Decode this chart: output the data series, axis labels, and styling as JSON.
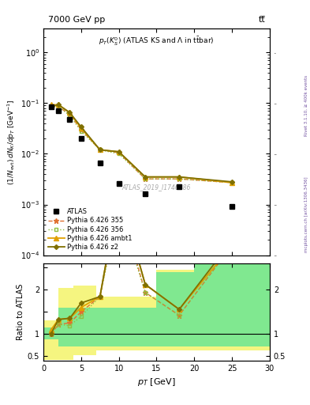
{
  "title_top": "7000 GeV pp",
  "title_right": "tt̅",
  "plot_title": "p_{T}(K^{0}_{S}) (ATLAS KS and \\Lambda in t\\bar{t}bar)",
  "watermark": "ATLAS_2019_I1746286",
  "right_label": "Rivet 3.1.10, ≥ 400k events",
  "right_label2": "mcplots.cern.ch [arXiv:1306.3436]",
  "ylabel_ratio": "Ratio to ATLAS",
  "xlabel": "p_{T} [GeV]",
  "xlim": [
    0,
    30
  ],
  "ylim_main": [
    0.0001,
    3.0
  ],
  "ylim_ratio": [
    0.4,
    2.6
  ],
  "atlas_x": [
    1.0,
    2.0,
    3.5,
    5.0,
    7.5,
    10.0,
    13.5,
    18.0,
    25.0
  ],
  "atlas_y": [
    0.085,
    0.07,
    0.048,
    0.02,
    0.0065,
    0.0026,
    0.00165,
    0.00225,
    0.0009
  ],
  "py355_x": [
    1.0,
    2.0,
    3.5,
    5.0,
    7.5,
    10.0,
    13.5,
    18.0,
    25.0
  ],
  "py355_y": [
    0.085,
    0.085,
    0.06,
    0.03,
    0.012,
    0.0105,
    0.0032,
    0.0032,
    0.0027
  ],
  "py356_x": [
    1.0,
    2.0,
    3.5,
    5.0,
    7.5,
    10.0,
    13.5,
    18.0,
    25.0
  ],
  "py356_y": [
    0.085,
    0.085,
    0.057,
    0.028,
    0.012,
    0.01,
    0.0032,
    0.0032,
    0.0027
  ],
  "py_ambt1_x": [
    1.0,
    2.0,
    3.5,
    5.0,
    7.5,
    10.0,
    13.5,
    18.0,
    25.0
  ],
  "py_ambt1_y": [
    0.093,
    0.093,
    0.065,
    0.032,
    0.012,
    0.011,
    0.0035,
    0.0035,
    0.0027
  ],
  "py_z2_x": [
    1.0,
    2.0,
    3.5,
    5.0,
    7.5,
    10.0,
    13.5,
    18.0,
    25.0
  ],
  "py_z2_y": [
    0.085,
    0.093,
    0.065,
    0.034,
    0.012,
    0.011,
    0.0035,
    0.0035,
    0.0028
  ],
  "color_355": "#e07030",
  "color_356": "#90c040",
  "color_ambt1": "#e0a000",
  "color_z2": "#807000",
  "green_x_edges": [
    0,
    1,
    2,
    4,
    7,
    15,
    20,
    30
  ],
  "green_ylo": [
    0.87,
    0.87,
    0.72,
    0.72,
    0.72,
    0.72,
    0.72,
    0.72
  ],
  "green_yhi": [
    1.15,
    1.15,
    1.6,
    1.6,
    1.6,
    2.4,
    2.6,
    2.6
  ],
  "yellow_x_edges": [
    0,
    1,
    2,
    4,
    7,
    15,
    20,
    30
  ],
  "yellow_ylo": [
    0.42,
    0.42,
    0.42,
    0.52,
    0.62,
    0.62,
    0.62,
    0.62
  ],
  "yellow_yhi": [
    1.3,
    1.3,
    2.05,
    2.1,
    1.85,
    2.45,
    2.6,
    2.6
  ]
}
